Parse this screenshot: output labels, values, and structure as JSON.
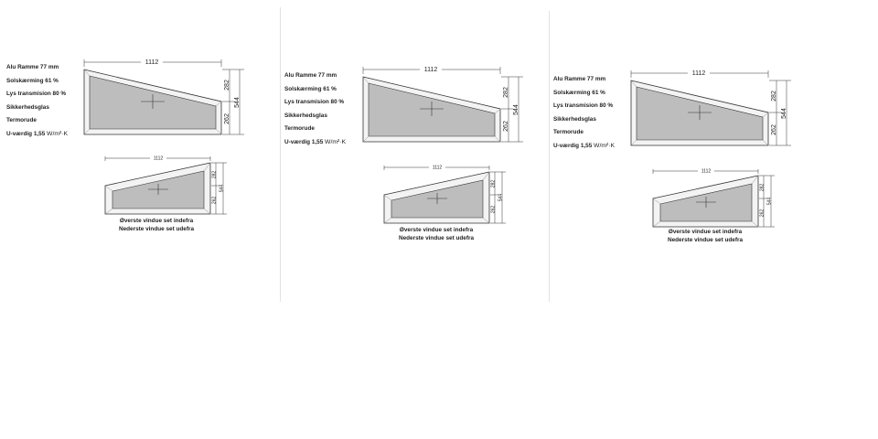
{
  "panels": [
    {
      "specs": [
        "Alu Ramme 77 mm",
        "Solskærming 61 %",
        "Lys transmision 80 %",
        "Sikkerhedsglas",
        "Termorude"
      ],
      "u_value": {
        "label": "U-værdig 1,55",
        "unit": "W/m²·K"
      },
      "top_window": {
        "width": "1112",
        "left_height": "282",
        "total_height": "544",
        "right_height": "262"
      },
      "bottom_window": {
        "width": "1112",
        "right_height": "282",
        "left_height": "262",
        "total_height": "544"
      },
      "caption": [
        "Øverste vindue set indefra",
        "Nederste vindue set udefra"
      ]
    },
    {
      "specs": [
        "Alu Ramme 77 mm",
        "Solskærming 61 %",
        "Lys transmision 80 %",
        "Sikkerhedsglas",
        "Termorude"
      ],
      "u_value": {
        "label": "U-værdig 1,55",
        "unit": "W/m²·K"
      },
      "top_window": {
        "width": "1112",
        "left_height": "282",
        "total_height": "544",
        "right_height": "262"
      },
      "bottom_window": {
        "width": "1112",
        "right_height": "282",
        "left_height": "262",
        "total_height": "544"
      },
      "caption": [
        "Øverste vindue set indefra",
        "Nederste vindue set udefra"
      ]
    },
    {
      "specs": [
        "Alu Ramme 77 mm",
        "Solskærming 61 %",
        "Lys transmision 80 %",
        "Sikkerhedsglas",
        "Termorude"
      ],
      "u_value": {
        "label": "U-værdig 1,55",
        "unit": "W/m²·K"
      },
      "top_window": {
        "width": "1112",
        "left_height": "282",
        "total_height": "544",
        "right_height": "262"
      },
      "bottom_window": {
        "width": "1112",
        "right_height": "282",
        "left_height": "262",
        "total_height": "544"
      },
      "caption": [
        "Øverste vindue set indefra",
        "Nederste vindue set udefra"
      ]
    }
  ]
}
